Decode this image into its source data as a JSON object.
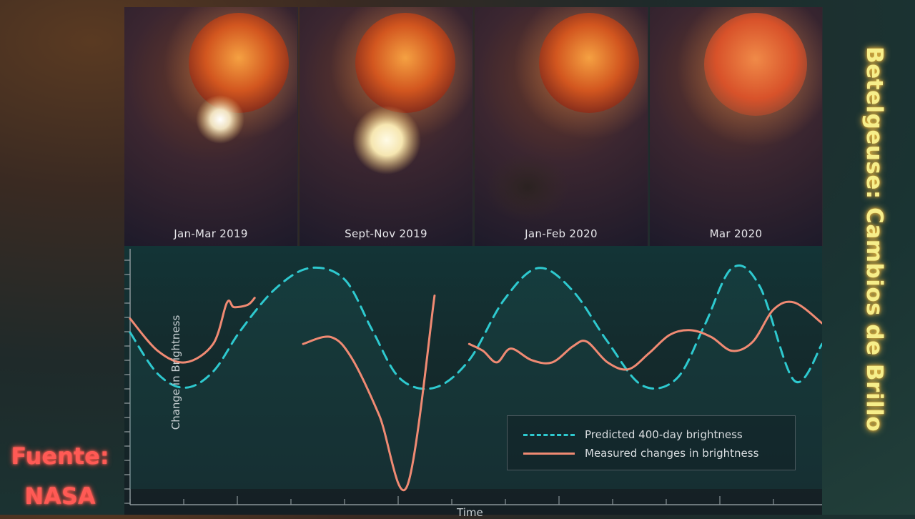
{
  "side_title": "Betelgeuse: Cambios de Brillo",
  "source": {
    "line1": "Fuente:",
    "line2": "NASA"
  },
  "panels": [
    {
      "label": "Jan-Mar 2019",
      "event": "bright-spot"
    },
    {
      "label": "Sept-Nov  2019",
      "event": "bright-outflow"
    },
    {
      "label": "Jan-Feb 2020",
      "event": "dust-cloud"
    },
    {
      "label": "Mar 2020",
      "event": "star-only"
    }
  ],
  "colors": {
    "predicted": "#2ec9cf",
    "measured": "#f08a73",
    "title": "#f6ee8a",
    "source": "#ff5a55"
  },
  "chart_data": {
    "type": "line",
    "xlabel": "Time",
    "ylabel": "Change in Brightness",
    "xlim": [
      0,
      100
    ],
    "ylim": [
      0,
      100
    ],
    "grid": false,
    "legend_position": "bottom-right",
    "series": [
      {
        "name": "Predicted 400-day brightness",
        "style": "dashed",
        "x": [
          0,
          4,
          8,
          12,
          16,
          21,
          26,
          31,
          35,
          39,
          44,
          49,
          54,
          59,
          64,
          69,
          74,
          79,
          83,
          87,
          91,
          96,
          100
        ],
        "y": [
          68,
          50,
          44,
          51,
          69,
          87,
          96,
          91,
          69,
          48,
          44,
          56,
          82,
          96,
          86,
          64,
          45,
          48,
          71,
          96,
          88,
          47,
          63
        ]
      },
      {
        "name": "Measured changes in brightness",
        "style": "solid",
        "segments": [
          {
            "x": [
              0,
              4,
              8,
              12,
              14,
              15,
              17,
              18
            ],
            "y": [
              74,
              60,
              55,
              63,
              81,
              79,
              80,
              83
            ]
          },
          {
            "x": [
              25,
              29,
              32,
              36,
              40,
              44
            ],
            "y": [
              63,
              66,
              57,
              32,
              1,
              84
            ]
          },
          {
            "x": [
              49,
              51,
              53,
              55,
              58,
              61,
              64,
              66,
              69,
              72,
              75,
              78,
              81,
              84,
              87,
              90,
              93,
              96,
              100
            ],
            "y": [
              63,
              60,
              55,
              61,
              56,
              55,
              62,
              64,
              55,
              52,
              59,
              67,
              69,
              66,
              60,
              64,
              78,
              81,
              72
            ]
          }
        ]
      }
    ]
  }
}
